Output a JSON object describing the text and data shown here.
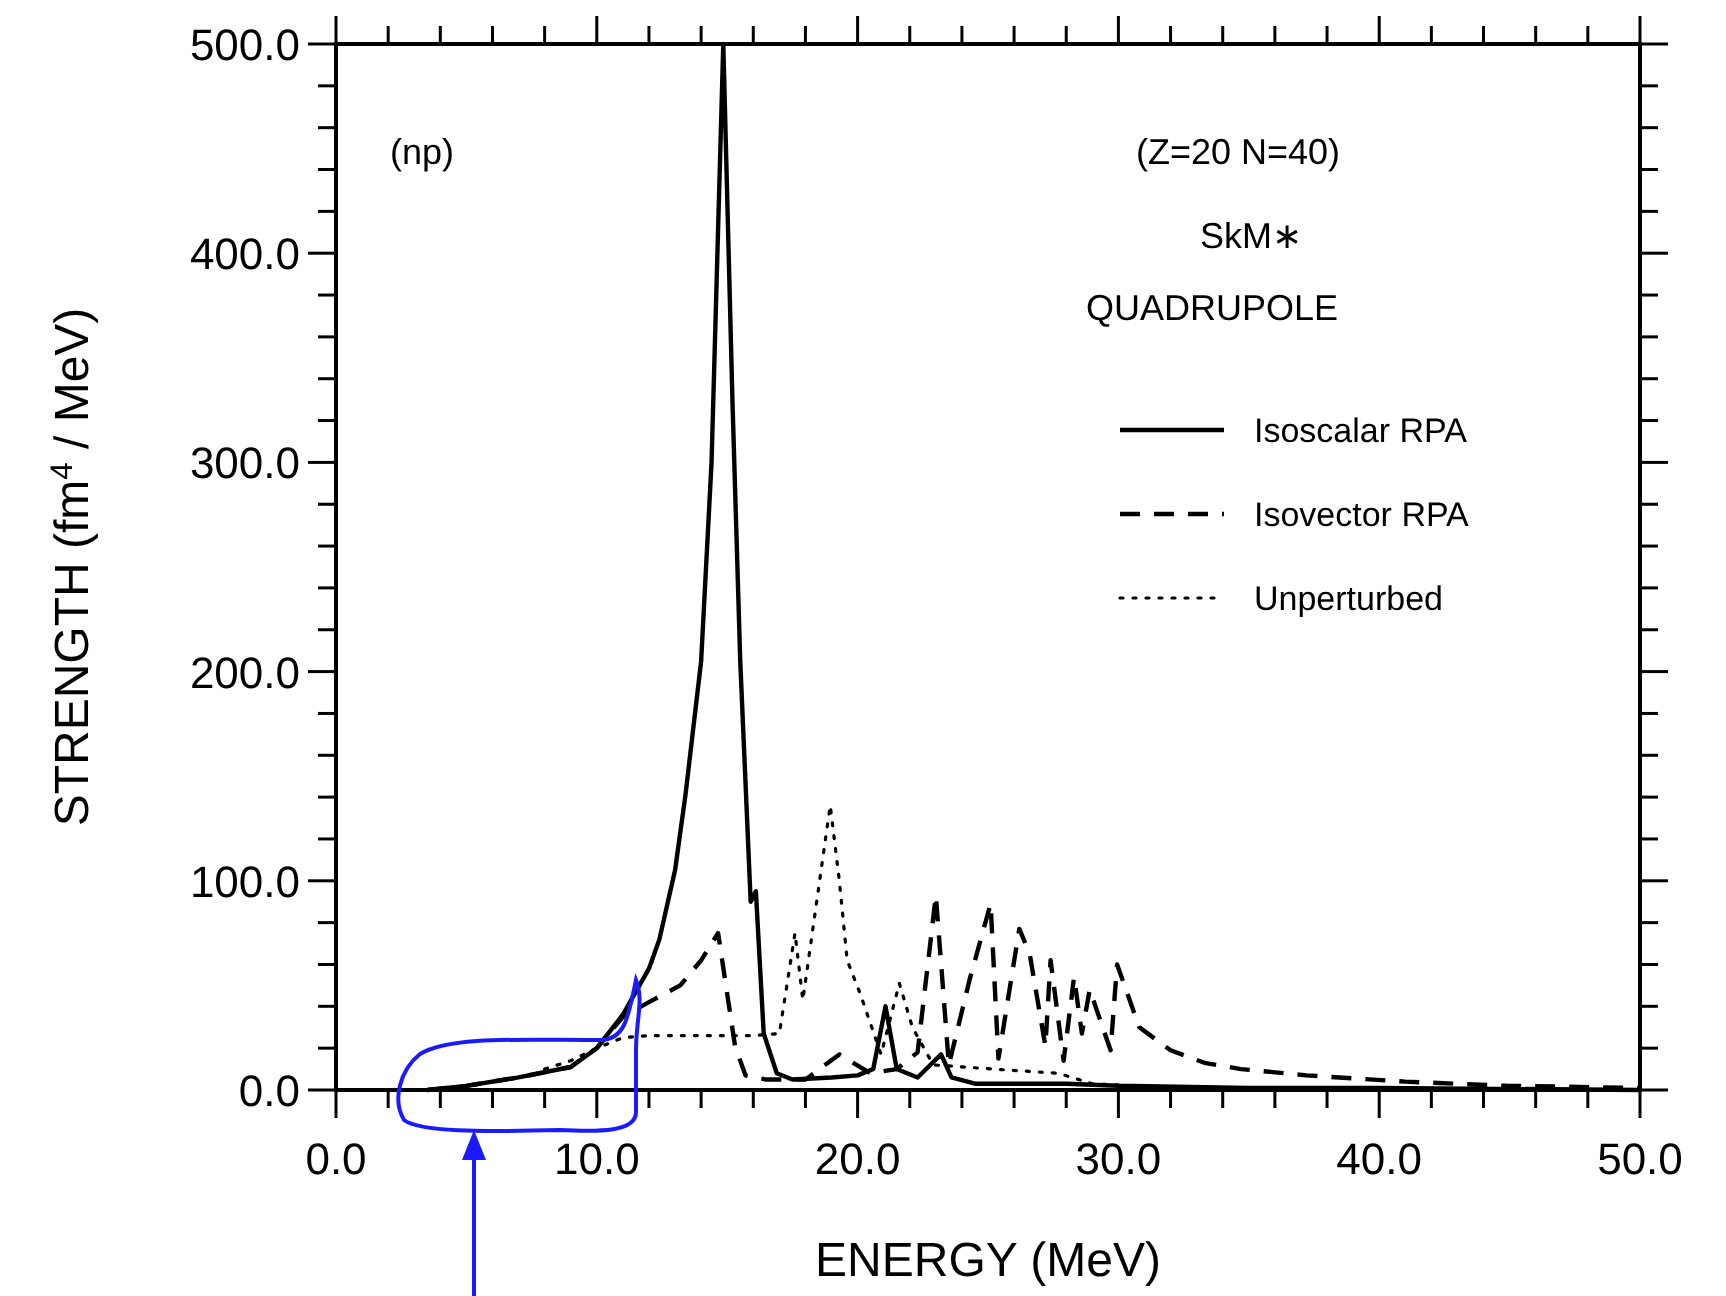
{
  "chart_data": {
    "type": "line",
    "xlabel": "ENERGY (MeV)",
    "ylabel": "STRENGTH (fm$^{4}$ / MeV)",
    "annotations": [
      "(np)",
      "(Z=20  N=40)",
      "SkM∗",
      "QUADRUPOLE"
    ],
    "xlim": [
      0,
      50
    ],
    "ylim": [
      0,
      500
    ],
    "xticks": [
      {
        "value": 0,
        "label": "0.0"
      },
      {
        "value": 2,
        "label": null
      },
      {
        "value": 4,
        "label": null
      },
      {
        "value": 6,
        "label": null
      },
      {
        "value": 8,
        "label": null
      },
      {
        "value": 10,
        "label": "10.0"
      },
      {
        "value": 12,
        "label": null
      },
      {
        "value": 14,
        "label": null
      },
      {
        "value": 16,
        "label": null
      },
      {
        "value": 18,
        "label": null
      },
      {
        "value": 20,
        "label": "20.0"
      },
      {
        "value": 22,
        "label": null
      },
      {
        "value": 24,
        "label": null
      },
      {
        "value": 26,
        "label": null
      },
      {
        "value": 28,
        "label": null
      },
      {
        "value": 30,
        "label": "30.0"
      },
      {
        "value": 32,
        "label": null
      },
      {
        "value": 34,
        "label": null
      },
      {
        "value": 36,
        "label": null
      },
      {
        "value": 38,
        "label": null
      },
      {
        "value": 40,
        "label": "40.0"
      },
      {
        "value": 42,
        "label": null
      },
      {
        "value": 44,
        "label": null
      },
      {
        "value": 46,
        "label": null
      },
      {
        "value": 48,
        "label": null
      },
      {
        "value": 50,
        "label": "50.0"
      }
    ],
    "yticks": [
      {
        "value": 0,
        "label": "0.0"
      },
      {
        "value": 20,
        "label": null
      },
      {
        "value": 40,
        "label": null
      },
      {
        "value": 60,
        "label": null
      },
      {
        "value": 80,
        "label": null
      },
      {
        "value": 100,
        "label": "100.0"
      },
      {
        "value": 120,
        "label": null
      },
      {
        "value": 140,
        "label": null
      },
      {
        "value": 160,
        "label": null
      },
      {
        "value": 180,
        "label": null
      },
      {
        "value": 200,
        "label": "200.0"
      },
      {
        "value": 220,
        "label": null
      },
      {
        "value": 240,
        "label": null
      },
      {
        "value": 260,
        "label": null
      },
      {
        "value": 280,
        "label": null
      },
      {
        "value": 300,
        "label": "300.0"
      },
      {
        "value": 320,
        "label": null
      },
      {
        "value": 340,
        "label": null
      },
      {
        "value": 360,
        "label": null
      },
      {
        "value": 380,
        "label": null
      },
      {
        "value": 400,
        "label": "400.0"
      },
      {
        "value": 420,
        "label": null
      },
      {
        "value": 440,
        "label": null
      },
      {
        "value": 460,
        "label": null
      },
      {
        "value": 480,
        "label": null
      },
      {
        "value": 500,
        "label": "500.0"
      }
    ],
    "grid": false,
    "legend": "right",
    "series": [
      {
        "name": "Isoscalar RPA",
        "color": "#000000",
        "line_style": "solid",
        "x": [
          3.5,
          5,
          7,
          9,
          10,
          11,
          12,
          12.4,
          13,
          13.4,
          14,
          14.4,
          14.85,
          15.2,
          15.5,
          15.9,
          16.1,
          16.4,
          16.9,
          17.5,
          19,
          20,
          20.6,
          21.07,
          21.5,
          22.3,
          23.2,
          23.6,
          24.5,
          26,
          28,
          30,
          35,
          40,
          50
        ],
        "values": [
          0,
          2,
          6,
          11,
          20,
          36,
          58,
          72,
          105,
          141,
          205,
          300,
          500,
          330,
          205,
          90,
          95,
          27,
          8,
          5,
          6,
          7,
          10,
          40,
          10,
          6,
          17,
          6,
          3,
          3,
          3,
          2,
          1,
          1,
          0
        ]
      },
      {
        "name": "Isovector RPA",
        "color": "#000000",
        "line_style": "dashed",
        "x": [
          3.5,
          5,
          7,
          9,
          10,
          11,
          12,
          13.2,
          14,
          14.65,
          15.3,
          15.7,
          16.5,
          18,
          19.3,
          20.5,
          21.5,
          22.3,
          23,
          23.5,
          24.3,
          25.1,
          25.4,
          26.2,
          26.6,
          27.2,
          27.4,
          27.9,
          28.3,
          28.6,
          28.9,
          29.7,
          29.95,
          30.8,
          32,
          33.3,
          34.7,
          37.2,
          41,
          44.9,
          50
        ],
        "values": [
          0,
          2,
          6,
          11,
          20,
          35,
          42,
          50,
          62,
          75,
          21,
          7,
          5,
          5,
          17,
          8,
          10,
          18,
          93,
          12,
          53,
          89,
          15,
          77,
          65,
          21,
          62,
          14,
          54,
          27,
          48,
          19,
          60,
          30,
          19,
          13,
          10,
          7,
          4,
          2,
          1
        ]
      },
      {
        "name": "Unperturbed",
        "color": "#000000",
        "line_style": "dotted",
        "x": [
          8,
          9,
          10,
          11,
          12,
          14,
          16,
          17,
          17.6,
          17.9,
          18.95,
          19.3,
          19.6,
          20.1,
          20.9,
          21.6,
          22.1,
          22.9,
          25.2,
          27.7,
          29,
          32,
          40,
          50
        ],
        "values": [
          10,
          14,
          20,
          25,
          26,
          26,
          26,
          27,
          75,
          43,
          136,
          100,
          62,
          46,
          17,
          51,
          30,
          12,
          10,
          8,
          3,
          1,
          0,
          0
        ]
      }
    ]
  }
}
